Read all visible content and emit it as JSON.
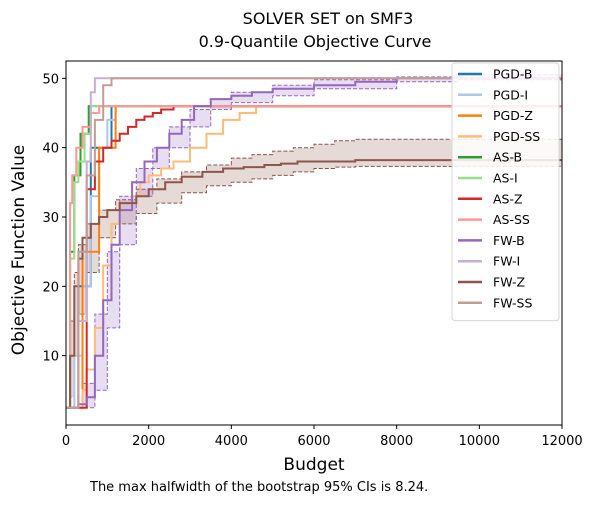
{
  "chart_data": {
    "type": "line",
    "title": "SOLVER SET on SMF3",
    "subtitle": "0.9-Quantile Objective Curve",
    "xlabel": "Budget",
    "ylabel": "Objective Function Value",
    "xlim": [
      0,
      12000
    ],
    "ylim": [
      0,
      52.5
    ],
    "xticks": [
      0,
      2000,
      4000,
      6000,
      8000,
      10000,
      12000
    ],
    "yticks": [
      10,
      20,
      30,
      40,
      50
    ],
    "grid": false,
    "legend_position": "top-right",
    "series": [
      {
        "name": "PGD-B",
        "color": "#1f77b4",
        "x": [
          0,
          300,
          600,
          1100,
          12000
        ],
        "y": [
          2.5,
          20,
          40,
          46,
          46
        ]
      },
      {
        "name": "PGD-I",
        "color": "#aec7e8",
        "x": [
          0,
          200,
          400,
          600,
          800,
          1000,
          1200,
          12000
        ],
        "y": [
          2.5,
          10,
          20,
          33,
          40,
          44,
          46,
          46
        ]
      },
      {
        "name": "PGD-Z",
        "color": "#ff7f0e",
        "x": [
          0,
          400,
          800,
          1200,
          12000
        ],
        "y": [
          2.5,
          25,
          40,
          46,
          46
        ]
      },
      {
        "name": "PGD-SS",
        "color": "#ffbb78",
        "x": [
          0,
          400,
          500,
          700,
          900,
          1100,
          1300,
          1600,
          1800,
          2000,
          2300,
          2600,
          3000,
          3400,
          3800,
          4200,
          4600,
          12000
        ],
        "y": [
          2.5,
          5,
          8,
          14,
          23,
          29,
          32,
          33,
          35,
          36,
          37,
          38,
          40,
          42,
          44,
          45,
          46,
          46
        ]
      },
      {
        "name": "AS-B",
        "color": "#2ca02c",
        "x": [
          0,
          100,
          200,
          350,
          550,
          12000
        ],
        "y": [
          2.5,
          25,
          36,
          42,
          46,
          46
        ]
      },
      {
        "name": "AS-I",
        "color": "#98df8a",
        "x": [
          0,
          100,
          200,
          300,
          450,
          600,
          12000
        ],
        "y": [
          2.5,
          24,
          35,
          38,
          42,
          46,
          46
        ]
      },
      {
        "name": "AS-Z",
        "color": "#d62728",
        "x": [
          0,
          500,
          700,
          900,
          1100,
          1300,
          1500,
          1700,
          1900,
          2100,
          2300,
          2600,
          12000
        ],
        "y": [
          2.5,
          34,
          38,
          40,
          41,
          42,
          43,
          44,
          44.5,
          45,
          45.5,
          46,
          46
        ]
      },
      {
        "name": "AS-SS",
        "color": "#ff9896",
        "x": [
          0,
          100,
          150,
          250,
          400,
          600,
          800,
          1100,
          12000
        ],
        "y": [
          2.5,
          32,
          36,
          40,
          43,
          45,
          46,
          46,
          46
        ]
      },
      {
        "name": "FW-B",
        "color": "#9467bd",
        "x": [
          0,
          300,
          500,
          700,
          900,
          1100,
          1300,
          1600,
          1900,
          2200,
          2500,
          2800,
          3100,
          3500,
          4000,
          4500,
          5000,
          6000,
          7000,
          8000,
          12000
        ],
        "y": [
          2.5,
          3,
          4,
          10,
          18,
          26,
          31,
          35,
          38,
          40,
          42,
          44,
          46,
          47,
          47.5,
          48,
          48.5,
          49,
          49.5,
          50,
          50
        ]
      },
      {
        "name": "FW-I",
        "color": "#c5b0d5",
        "x": [
          0,
          300,
          500,
          600,
          700,
          12000
        ],
        "y": [
          2.5,
          15,
          38,
          48,
          50,
          50
        ]
      },
      {
        "name": "FW-Z",
        "color": "#8c564b",
        "x": [
          0,
          100,
          200,
          300,
          400,
          600,
          800,
          1000,
          1300,
          1700,
          2000,
          2400,
          2800,
          3300,
          3800,
          4300,
          4800,
          5200,
          5600,
          6000,
          7000,
          12000
        ],
        "y": [
          2.5,
          10,
          20,
          24,
          27,
          29,
          30,
          31,
          32,
          33,
          34,
          35,
          35.8,
          36.5,
          37,
          37.2,
          37.5,
          37.7,
          38,
          38,
          38.2,
          38.2
        ]
      },
      {
        "name": "FW-SS",
        "color": "#c49c94",
        "x": [
          0,
          300,
          500,
          700,
          900,
          1100,
          12000
        ],
        "y": [
          2.5,
          25,
          36,
          44,
          49,
          50,
          50
        ]
      }
    ],
    "ci_bands": [
      {
        "series": "FW-Z",
        "color": "#8c564b",
        "x": [
          0,
          100,
          200,
          300,
          500,
          800,
          1200,
          1700,
          2200,
          2800,
          3400,
          4000,
          4500,
          5000,
          5500,
          6000,
          6500,
          7000,
          12000
        ],
        "lower": [
          2.5,
          4,
          10,
          16,
          22,
          27,
          29,
          30.5,
          32,
          33.5,
          34.5,
          35,
          35.5,
          36,
          36.5,
          37,
          37.2,
          37.3,
          37.3
        ],
        "upper": [
          2.5,
          15,
          22,
          26,
          29,
          31,
          32.5,
          34,
          35.5,
          36.5,
          37.5,
          38.5,
          39,
          39.5,
          40,
          40.5,
          41,
          41.2,
          41.2
        ]
      },
      {
        "series": "FW-B",
        "color": "#9467bd",
        "x": [
          0,
          400,
          700,
          1000,
          1300,
          1700,
          2100,
          2500,
          3000,
          3500,
          4000,
          5000,
          6000,
          8000,
          9500,
          12000
        ],
        "lower": [
          2.5,
          2.5,
          5,
          14,
          26,
          33,
          37,
          40,
          43,
          45.5,
          46.5,
          47.5,
          48.5,
          49.5,
          49.8,
          49.8
        ],
        "upper": [
          2.5,
          6,
          16,
          25,
          33,
          37,
          40,
          43,
          45.5,
          47,
          48,
          49,
          49.8,
          50.2,
          50.5,
          50.5
        ]
      }
    ],
    "footnote": "The max halfwidth of the bootstrap 95% CIs is 8.24."
  }
}
